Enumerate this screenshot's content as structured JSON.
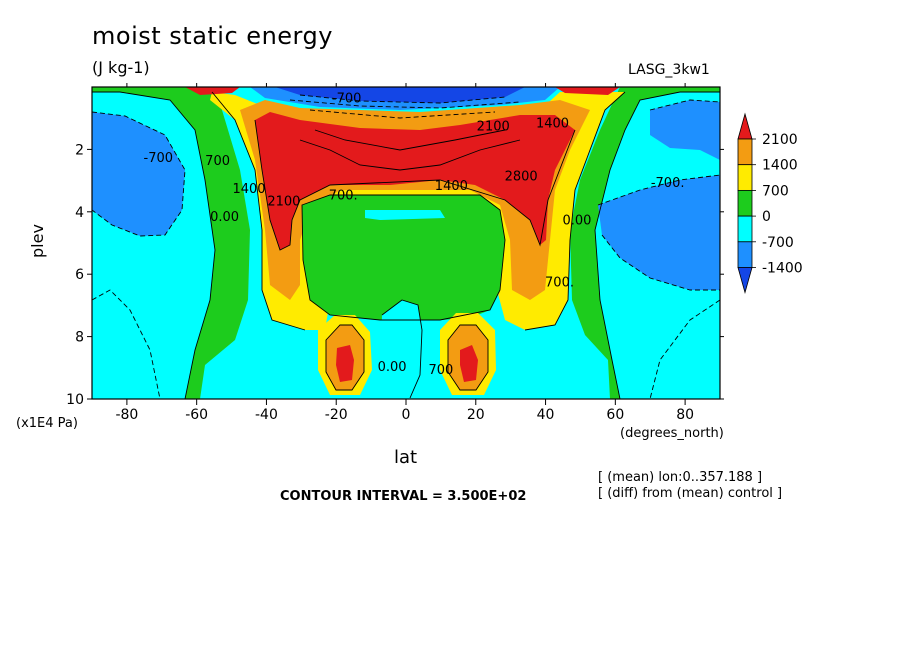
{
  "header": {
    "title": "moist static energy",
    "units": "(J kg-1)",
    "model": "LASG_3kw1"
  },
  "axes": {
    "ylabel": "plev",
    "yunits": "(x1E4 Pa)",
    "xlabel": "lat",
    "xunits": "(degrees_north)"
  },
  "footer": {
    "interval": "CONTOUR INTERVAL = 3.500E+02",
    "note1": "[ (mean) lon:0..357.188 ]",
    "note2": "[ (diff) from (mean) control ]"
  },
  "chart_data": {
    "type": "heatmap",
    "title": "moist static energy",
    "subtitle": "(J kg-1)",
    "xlabel": "lat",
    "ylabel": "plev",
    "xlim": [
      -90,
      90
    ],
    "ylim": [
      0,
      10
    ],
    "y_inverted": true,
    "x_ticks": [
      -80,
      -60,
      -40,
      -20,
      0,
      20,
      40,
      60,
      80
    ],
    "x_tick_labels": [
      "-80",
      "-60",
      "-40",
      "-20",
      "0",
      "20",
      "40",
      "60",
      "80"
    ],
    "y_ticks": [
      2,
      4,
      6,
      8,
      10
    ],
    "y_tick_labels": [
      "2",
      "4",
      "6",
      "8",
      "10"
    ],
    "contour_interval": 350,
    "colorbar": {
      "levels": [
        -1400,
        -700,
        0,
        700,
        1400,
        2100
      ],
      "labels": [
        "2100",
        "1400",
        "700",
        "0",
        "-700",
        "-1400"
      ],
      "colors": [
        "#e31a1c",
        "#f39c12",
        "#ffeb00",
        "#1dcc1d",
        "#00ffff",
        "#1e90ff",
        "#1446e6"
      ]
    },
    "contour_labels": [
      {
        "text": "-700",
        "x": -71,
        "p": 2.4
      },
      {
        "text": "700",
        "x": -54,
        "p": 2.5
      },
      {
        "text": "1400",
        "x": -45,
        "p": 3.4
      },
      {
        "text": "2100",
        "x": -35,
        "p": 3.8
      },
      {
        "text": "0.00",
        "x": -52,
        "p": 4.3
      },
      {
        "text": "700.",
        "x": -18,
        "p": 3.6
      },
      {
        "text": "-700",
        "x": -17,
        "p": 0.5
      },
      {
        "text": "2100",
        "x": 25,
        "p": 1.4
      },
      {
        "text": "1400",
        "x": 42,
        "p": 1.3
      },
      {
        "text": "1400",
        "x": 13,
        "p": 3.3
      },
      {
        "text": "2800",
        "x": 33,
        "p": 3.0
      },
      {
        "text": "-700.",
        "x": 75,
        "p": 3.2
      },
      {
        "text": "0.00",
        "x": 49,
        "p": 4.4
      },
      {
        "text": "700.",
        "x": 44,
        "p": 6.4
      },
      {
        "text": "0.00",
        "x": -4,
        "p": 9.1
      },
      {
        "text": "700",
        "x": 10,
        "p": 9.2
      }
    ]
  }
}
